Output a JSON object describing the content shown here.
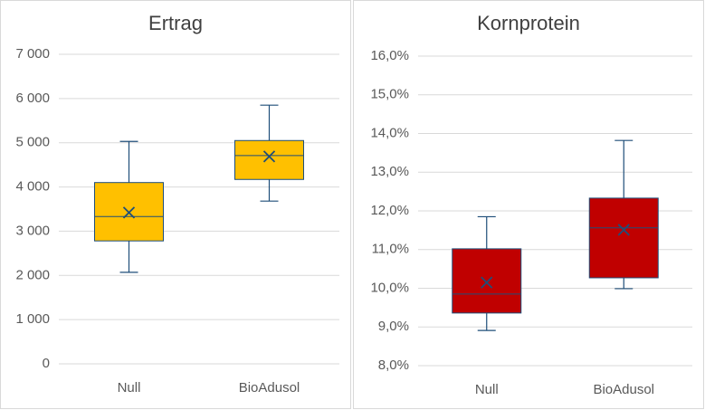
{
  "chart_data": [
    {
      "type": "box",
      "title": "Ertrag",
      "color": "#ffc000",
      "categories": [
        "Null",
        "BioAdusol"
      ],
      "boxes": [
        {
          "min": 2070,
          "q1": 2780,
          "median": 3330,
          "q3": 4100,
          "max": 5030,
          "mean": 3420
        },
        {
          "min": 3680,
          "q1": 4170,
          "median": 4710,
          "q3": 5050,
          "max": 5850,
          "mean": 4690
        }
      ],
      "ylim": [
        0,
        7000
      ],
      "yticks": [
        0,
        {
          "value": 1000,
          "label": "1 000"
        },
        {
          "value": 2000,
          "label": "2 000"
        },
        {
          "value": 3000,
          "label": "3 000"
        },
        {
          "value": 4000,
          "label": "4 000"
        },
        {
          "value": 5000,
          "label": "5 000"
        },
        {
          "value": 6000,
          "label": "6 000"
        },
        {
          "value": 7000,
          "label": "7 000"
        }
      ],
      "grid": true
    },
    {
      "type": "box",
      "title": "Kornprotein",
      "color": "#c00000",
      "categories": [
        "Null",
        "BioAdusol"
      ],
      "boxes": [
        {
          "min": 8.91,
          "q1": 9.36,
          "median": 9.85,
          "q3": 11.02,
          "max": 11.85,
          "mean": 10.15
        },
        {
          "min": 9.99,
          "q1": 10.27,
          "median": 11.56,
          "q3": 12.33,
          "max": 13.82,
          "mean": 11.51
        }
      ],
      "ylim": [
        8,
        16
      ],
      "yticks": [
        {
          "value": 8,
          "label": "8,0%"
        },
        {
          "value": 9,
          "label": "9,0%"
        },
        {
          "value": 10,
          "label": "10,0%"
        },
        {
          "value": 11,
          "label": "11,0%"
        },
        {
          "value": 12,
          "label": "12,0%"
        },
        {
          "value": 13,
          "label": "13,0%"
        },
        {
          "value": 14,
          "label": "14,0%"
        },
        {
          "value": 15,
          "label": "15,0%"
        },
        {
          "value": 16,
          "label": "16,0%"
        }
      ],
      "grid": true
    }
  ]
}
